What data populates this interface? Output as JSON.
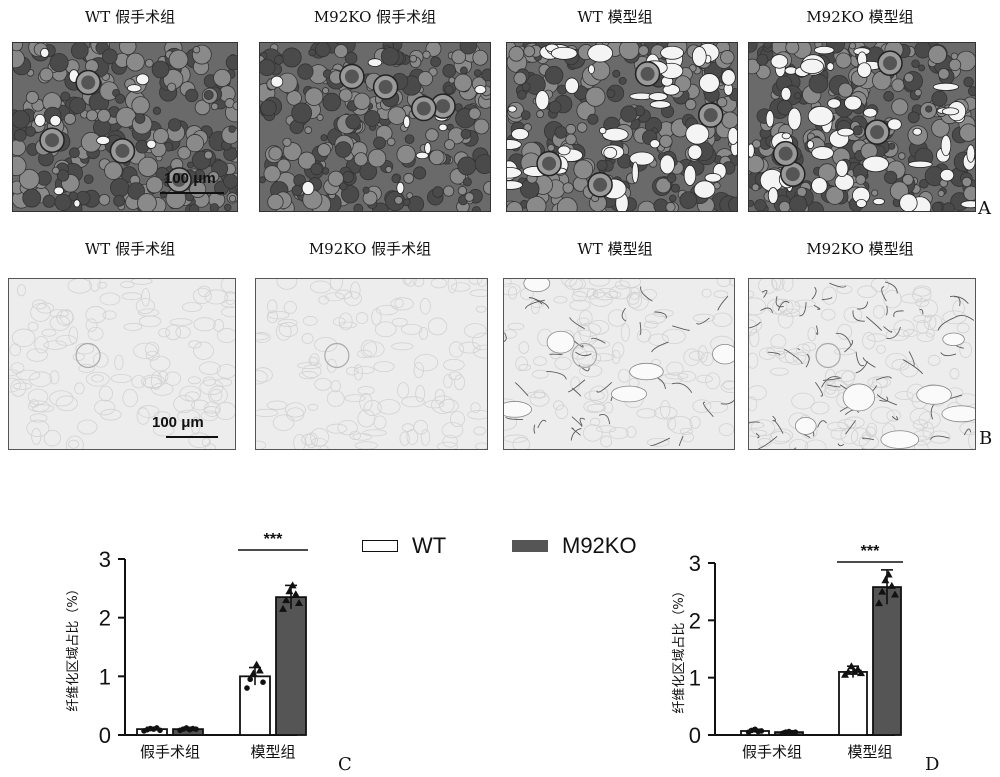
{
  "figure": {
    "panel_a": {
      "letter": "A",
      "titles": [
        "WT 假手术组",
        "M92KO 假手术组",
        "WT 模型组",
        "M92KO 模型组"
      ],
      "scale_bar": "100 μm"
    },
    "panel_b": {
      "letter": "B",
      "titles": [
        "WT 假手术组",
        "M92KO 假手术组",
        "WT 模型组",
        "M92KO 模型组"
      ],
      "scale_bar": "100 μm"
    },
    "legend": {
      "wt": "WT",
      "ko": "M92KO"
    },
    "colors": {
      "wt_fill": "#ffffff",
      "ko_fill": "#555555",
      "stroke": "#111111"
    }
  },
  "chart_data": [
    {
      "id": "C",
      "type": "bar",
      "letter": "C",
      "ylabel": "纤维化区域占比（%）",
      "categories": [
        "假手术组",
        "模型组"
      ],
      "series": [
        {
          "name": "WT",
          "values": [
            0.1,
            1.0
          ],
          "errors": [
            0.03,
            0.15
          ],
          "points": [
            [
              0.07,
              0.09,
              0.11,
              0.1,
              0.12,
              0.08
            ],
            [
              0.8,
              0.95,
              1.05,
              1.2,
              1.1,
              0.9
            ]
          ]
        },
        {
          "name": "M92KO",
          "values": [
            0.1,
            2.35
          ],
          "errors": [
            0.03,
            0.2
          ],
          "points": [
            [
              0.08,
              0.1,
              0.12,
              0.09,
              0.11,
              0.1
            ],
            [
              2.15,
              2.3,
              2.45,
              2.55,
              2.4,
              2.25
            ]
          ]
        }
      ],
      "significance": "***",
      "yticks": [
        0,
        1,
        2,
        3
      ],
      "ylim": [
        0,
        3
      ]
    },
    {
      "id": "D",
      "type": "bar",
      "letter": "D",
      "ylabel": "纤维化区域占比（%）",
      "categories": [
        "假手术组",
        "模型组"
      ],
      "series": [
        {
          "name": "WT",
          "values": [
            0.07,
            1.1
          ],
          "errors": [
            0.03,
            0.1
          ],
          "points": [
            [
              0.05,
              0.08,
              0.1,
              0.06,
              0.07
            ],
            [
              1.05,
              1.1,
              1.2,
              1.1,
              1.15,
              1.08
            ]
          ]
        },
        {
          "name": "M92KO",
          "values": [
            0.05,
            2.58
          ],
          "errors": [
            0.02,
            0.3
          ],
          "points": [
            [
              0.03,
              0.05,
              0.06,
              0.04,
              0.05
            ],
            [
              2.3,
              2.5,
              2.7,
              2.8,
              2.6,
              2.45
            ]
          ]
        }
      ],
      "significance": "***",
      "yticks": [
        0,
        1,
        2,
        3
      ],
      "ylim": [
        0,
        3
      ]
    }
  ]
}
